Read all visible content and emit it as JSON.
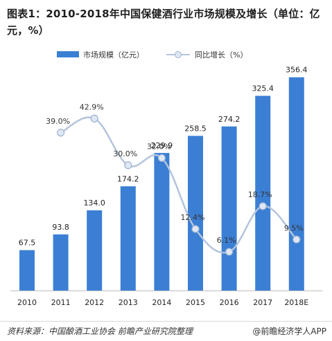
{
  "title": "图表1：2010-2018年中国保健酒行业市场规模及增长（单位：亿元，%）",
  "footer": {
    "source": "资料来源：中国酿酒工业协会  前瞻产业研究院整理",
    "credit": "@前瞻经济学人APP"
  },
  "colors": {
    "bar": "#3b7fd4",
    "line": "#b3c4dc",
    "marker_fill": "#dfe7f2",
    "marker_stroke": "#9cb3d1"
  },
  "chart_data": {
    "type": "bar",
    "categories": [
      "2010",
      "2011",
      "2012",
      "2013",
      "2014",
      "2015",
      "2016",
      "2017",
      "2018E"
    ],
    "series": [
      {
        "name": "市场规模（亿元）",
        "type": "bar",
        "values": [
          67.5,
          93.8,
          134.0,
          174.2,
          229.9,
          258.5,
          274.2,
          325.4,
          356.4
        ],
        "labels": [
          "67.5",
          "93.8",
          "134.0",
          "174.2",
          "229.9",
          "258.5",
          "274.2",
          "325.4",
          "356.4"
        ]
      },
      {
        "name": "同比增长（%）",
        "type": "line",
        "values": [
          null,
          39.0,
          42.9,
          30.0,
          32.0,
          12.4,
          6.1,
          18.7,
          9.5
        ],
        "labels": [
          "",
          "39.0%",
          "42.9%",
          "30.0%",
          "32.0%",
          "12.4%",
          "6.1%",
          "18.7%",
          "9.5%"
        ]
      }
    ],
    "bar_axis_range": [
      0,
      400
    ],
    "line_axis_range": [
      0,
      55
    ],
    "legend_position": "top",
    "grid": false,
    "smooth_line": true
  }
}
